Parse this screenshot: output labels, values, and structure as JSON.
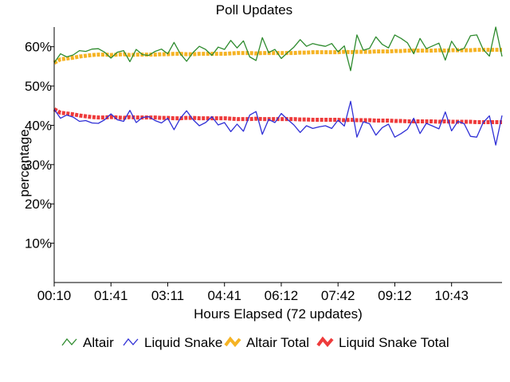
{
  "chart_data": {
    "type": "line",
    "title": "Poll Updates",
    "xlabel": "Hours Elapsed (72 updates)",
    "ylabel": "percentage",
    "xlim": [
      0,
      71
    ],
    "ylim": [
      0,
      65
    ],
    "x_tick_labels": [
      "00:10",
      "01:41",
      "03:11",
      "04:41",
      "06:12",
      "07:42",
      "09:12",
      "10:43"
    ],
    "x_tick_positions": [
      0,
      9,
      18,
      27,
      36,
      45,
      54,
      63
    ],
    "y_ticks": [
      10,
      20,
      30,
      40,
      50,
      60
    ],
    "y_tick_labels": [
      "10%",
      "20%",
      "30%",
      "40%",
      "50%",
      "60%"
    ],
    "legend_position": "bottom",
    "series": [
      {
        "name": "Altair",
        "color": "#2e8b2e",
        "values": [
          55.9,
          58.2,
          57.4,
          57.9,
          59.0,
          58.8,
          59.4,
          59.5,
          58.6,
          57.1,
          58.6,
          59.0,
          56.2,
          59.3,
          58.0,
          57.8,
          58.8,
          59.4,
          58.2,
          61.1,
          58.2,
          56.3,
          58.5,
          60.1,
          59.3,
          57.8,
          59.9,
          59.3,
          61.6,
          59.7,
          61.5,
          57.4,
          56.5,
          62.3,
          58.5,
          59.3,
          57.0,
          58.5,
          59.9,
          61.8,
          60.1,
          60.8,
          60.4,
          60.1,
          60.8,
          58.7,
          60.2,
          53.9,
          63.0,
          59.1,
          59.6,
          62.5,
          60.6,
          59.7,
          63.0,
          62.1,
          61.0,
          58.2,
          62.1,
          59.5,
          60.2,
          60.9,
          56.6,
          61.4,
          59.0,
          59.6,
          62.8,
          63.0,
          59.3,
          57.6,
          65.0,
          57.5
        ]
      },
      {
        "name": "Liquid Snake",
        "color": "#2f2fd6",
        "values": [
          44.1,
          41.8,
          42.6,
          42.1,
          41.0,
          41.2,
          40.6,
          40.5,
          41.4,
          42.9,
          41.4,
          41.0,
          43.8,
          40.7,
          42.0,
          42.2,
          41.2,
          40.6,
          41.8,
          38.9,
          41.8,
          43.7,
          41.5,
          39.9,
          40.7,
          42.2,
          40.1,
          40.7,
          38.4,
          40.3,
          38.5,
          42.6,
          43.5,
          37.7,
          41.5,
          40.7,
          43.0,
          41.5,
          40.1,
          38.2,
          39.9,
          39.2,
          39.6,
          39.9,
          39.2,
          41.3,
          39.8,
          46.1,
          37.0,
          40.9,
          40.4,
          37.5,
          39.4,
          40.3,
          37.0,
          37.9,
          39.0,
          41.8,
          37.9,
          40.5,
          39.8,
          39.1,
          43.4,
          38.6,
          41.0,
          40.4,
          37.2,
          37.0,
          40.7,
          42.4,
          35.0,
          42.5
        ]
      },
      {
        "name": "Altair Total",
        "color": "#f5b324",
        "values": [
          55.9,
          56.8,
          57.0,
          57.2,
          57.5,
          57.7,
          57.9,
          58.0,
          58.0,
          57.9,
          58.0,
          58.1,
          57.9,
          58.0,
          58.0,
          58.0,
          58.0,
          58.1,
          58.1,
          58.2,
          58.2,
          58.1,
          58.1,
          58.2,
          58.2,
          58.2,
          58.2,
          58.2,
          58.3,
          58.4,
          58.4,
          58.4,
          58.3,
          58.4,
          58.4,
          58.4,
          58.4,
          58.4,
          58.4,
          58.5,
          58.5,
          58.6,
          58.6,
          58.6,
          58.6,
          58.6,
          58.7,
          58.6,
          58.7,
          58.7,
          58.7,
          58.8,
          58.8,
          58.8,
          58.9,
          58.9,
          59.0,
          59.0,
          59.0,
          59.0,
          59.0,
          59.1,
          59.0,
          59.1,
          59.1,
          59.1,
          59.1,
          59.2,
          59.2,
          59.2,
          59.2,
          59.2
        ]
      },
      {
        "name": "Liquid Snake Total",
        "color": "#ee3b3b",
        "values": [
          44.1,
          43.2,
          43.0,
          42.8,
          42.5,
          42.3,
          42.1,
          42.0,
          42.0,
          42.1,
          42.0,
          41.9,
          42.1,
          42.0,
          42.0,
          42.0,
          42.0,
          41.9,
          41.9,
          41.8,
          41.8,
          41.9,
          41.9,
          41.8,
          41.8,
          41.8,
          41.8,
          41.8,
          41.7,
          41.6,
          41.6,
          41.6,
          41.7,
          41.6,
          41.6,
          41.6,
          41.6,
          41.6,
          41.6,
          41.5,
          41.5,
          41.4,
          41.4,
          41.4,
          41.4,
          41.4,
          41.3,
          41.4,
          41.3,
          41.3,
          41.3,
          41.2,
          41.2,
          41.2,
          41.1,
          41.1,
          41.0,
          41.0,
          41.0,
          41.0,
          41.0,
          40.9,
          41.0,
          40.9,
          40.9,
          40.9,
          40.9,
          40.8,
          40.8,
          40.8,
          40.8,
          40.8
        ]
      }
    ]
  }
}
